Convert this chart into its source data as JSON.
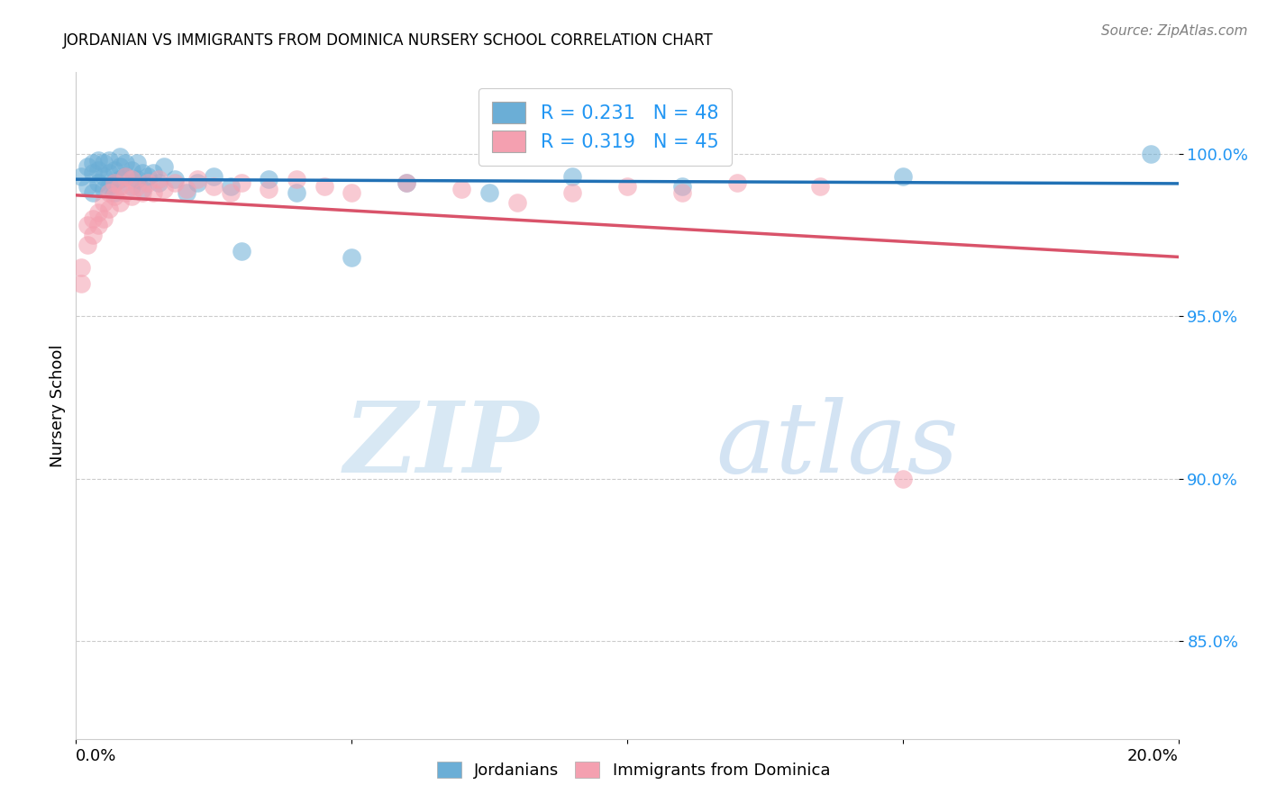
{
  "title": "JORDANIAN VS IMMIGRANTS FROM DOMINICA NURSERY SCHOOL CORRELATION CHART",
  "source": "Source: ZipAtlas.com",
  "ylabel": "Nursery School",
  "x_min": 0.0,
  "x_max": 0.2,
  "y_min": 0.82,
  "y_max": 1.025,
  "yticks": [
    0.85,
    0.9,
    0.95,
    1.0
  ],
  "ytick_labels": [
    "85.0%",
    "90.0%",
    "95.0%",
    "100.0%"
  ],
  "blue_color": "#6baed6",
  "pink_color": "#f4a0b0",
  "blue_line_color": "#2171b5",
  "pink_line_color": "#d9536a",
  "legend_blue_R": "R = 0.231",
  "legend_blue_N": "N = 48",
  "legend_pink_R": "R = 0.319",
  "legend_pink_N": "N = 45",
  "blue_scatter_x": [
    0.001,
    0.002,
    0.002,
    0.003,
    0.003,
    0.003,
    0.004,
    0.004,
    0.004,
    0.005,
    0.005,
    0.005,
    0.006,
    0.006,
    0.006,
    0.007,
    0.007,
    0.007,
    0.008,
    0.008,
    0.008,
    0.009,
    0.009,
    0.01,
    0.01,
    0.011,
    0.011,
    0.012,
    0.012,
    0.013,
    0.014,
    0.015,
    0.016,
    0.018,
    0.02,
    0.022,
    0.025,
    0.028,
    0.03,
    0.035,
    0.04,
    0.05,
    0.06,
    0.075,
    0.09,
    0.11,
    0.15,
    0.195
  ],
  "blue_scatter_y": [
    0.993,
    0.99,
    0.996,
    0.988,
    0.994,
    0.997,
    0.991,
    0.995,
    0.998,
    0.989,
    0.993,
    0.997,
    0.99,
    0.994,
    0.998,
    0.991,
    0.995,
    0.988,
    0.992,
    0.996,
    0.999,
    0.993,
    0.997,
    0.99,
    0.995,
    0.992,
    0.997,
    0.994,
    0.989,
    0.993,
    0.994,
    0.991,
    0.996,
    0.992,
    0.988,
    0.991,
    0.993,
    0.99,
    0.97,
    0.992,
    0.988,
    0.968,
    0.991,
    0.988,
    0.993,
    0.99,
    0.993,
    1.0
  ],
  "pink_scatter_x": [
    0.001,
    0.001,
    0.002,
    0.002,
    0.003,
    0.003,
    0.004,
    0.004,
    0.005,
    0.005,
    0.006,
    0.006,
    0.007,
    0.007,
    0.008,
    0.008,
    0.009,
    0.009,
    0.01,
    0.01,
    0.011,
    0.012,
    0.013,
    0.014,
    0.015,
    0.016,
    0.018,
    0.02,
    0.022,
    0.025,
    0.028,
    0.03,
    0.035,
    0.04,
    0.045,
    0.05,
    0.06,
    0.07,
    0.08,
    0.09,
    0.1,
    0.11,
    0.12,
    0.135,
    0.15
  ],
  "pink_scatter_y": [
    0.965,
    0.96,
    0.978,
    0.972,
    0.98,
    0.975,
    0.982,
    0.978,
    0.985,
    0.98,
    0.988,
    0.983,
    0.987,
    0.991,
    0.985,
    0.99,
    0.988,
    0.993,
    0.987,
    0.992,
    0.99,
    0.988,
    0.991,
    0.988,
    0.992,
    0.989,
    0.991,
    0.989,
    0.992,
    0.99,
    0.988,
    0.991,
    0.989,
    0.992,
    0.99,
    0.988,
    0.991,
    0.989,
    0.985,
    0.988,
    0.99,
    0.988,
    0.991,
    0.99,
    0.9
  ]
}
